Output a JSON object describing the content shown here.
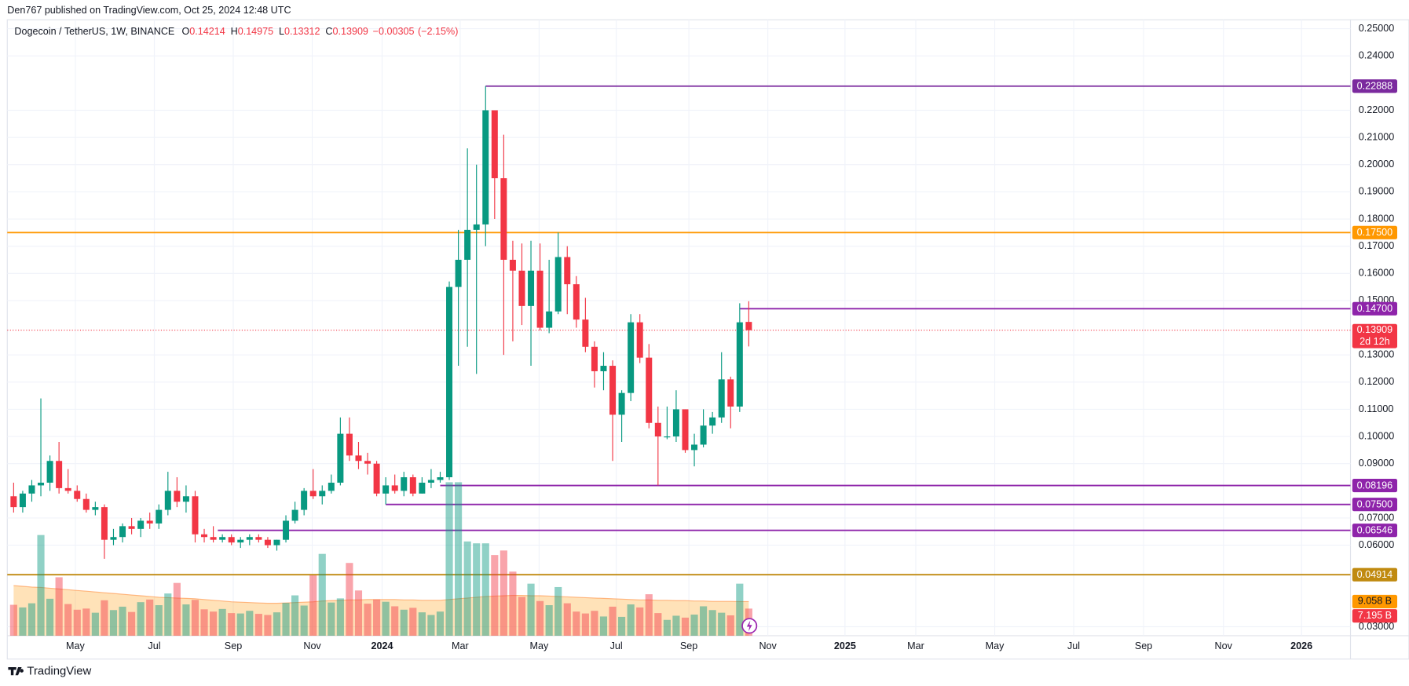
{
  "header": {
    "published": "Den767 published on TradingView.com, Oct 25, 2024 12:48 UTC"
  },
  "footer": "TradingView",
  "chart_data": {
    "type": "candlestick",
    "symbol": "Dogecoin / TetherUS, 1W, BINANCE",
    "ohlc_labels": [
      "O",
      "H",
      "L",
      "C"
    ],
    "change": {
      "value": -0.00305,
      "label": "−0.00305"
    },
    "change_pct": {
      "value": -2.15,
      "label": "(−2.15%)"
    },
    "countdown": "2d 12h",
    "up_color": "#089981",
    "down_color": "#f23645",
    "open": [
      0.078,
      0.074,
      0.079,
      0.082,
      0.083,
      0.091,
      0.081,
      0.08,
      0.077,
      0.073,
      0.074,
      0.062,
      0.063,
      0.067,
      0.066,
      0.069,
      0.068,
      0.073,
      0.08,
      0.076,
      0.078,
      0.064,
      0.063,
      0.062,
      0.063,
      0.061,
      0.062,
      0.063,
      0.062,
      0.06,
      0.062,
      0.069,
      0.073,
      0.08,
      0.078,
      0.08,
      0.083,
      0.101,
      0.093,
      0.091,
      0.09,
      0.079,
      0.082,
      0.08,
      0.085,
      0.079,
      0.083,
      0.084,
      0.085,
      0.155,
      0.165,
      0.176,
      0.178,
      0.22,
      0.195,
      0.165,
      0.161,
      0.148,
      0.161,
      0.14,
      0.146,
      0.166,
      0.156,
      0.143,
      0.133,
      0.124,
      0.126,
      0.108,
      0.116,
      0.142,
      0.129,
      0.105,
      0.1,
      0.1,
      0.11,
      0.095,
      0.097,
      0.104,
      0.107,
      0.121,
      0.111,
      0.14214
    ],
    "high": [
      0.083,
      0.08,
      0.084,
      0.114,
      0.093,
      0.098,
      0.088,
      0.082,
      0.079,
      0.076,
      0.075,
      0.066,
      0.068,
      0.07,
      0.07,
      0.072,
      0.075,
      0.087,
      0.085,
      0.082,
      0.08,
      0.066,
      0.067,
      0.064,
      0.064,
      0.063,
      0.064,
      0.064,
      0.063,
      0.062,
      0.071,
      0.076,
      0.081,
      0.088,
      0.082,
      0.086,
      0.107,
      0.107,
      0.098,
      0.094,
      0.091,
      0.085,
      0.086,
      0.087,
      0.086,
      0.085,
      0.088,
      0.087,
      0.157,
      0.176,
      0.206,
      0.2,
      0.22888,
      0.22,
      0.211,
      0.172,
      0.171,
      0.172,
      0.171,
      0.165,
      0.175,
      0.17,
      0.159,
      0.151,
      0.135,
      0.131,
      0.128,
      0.117,
      0.145,
      0.145,
      0.134,
      0.111,
      0.111,
      0.117,
      0.11,
      0.101,
      0.11,
      0.109,
      0.131,
      0.122,
      0.149,
      0.14975
    ],
    "low": [
      0.072,
      0.072,
      0.076,
      0.078,
      0.08,
      0.079,
      0.079,
      0.076,
      0.072,
      0.071,
      0.055,
      0.06,
      0.061,
      0.064,
      0.063,
      0.066,
      0.066,
      0.071,
      0.074,
      0.072,
      0.061,
      0.061,
      0.061,
      0.061,
      0.06,
      0.059,
      0.06,
      0.061,
      0.059,
      0.058,
      0.061,
      0.068,
      0.071,
      0.077,
      0.075,
      0.079,
      0.082,
      0.091,
      0.088,
      0.086,
      0.078,
      0.075,
      0.079,
      0.078,
      0.078,
      0.079,
      0.081,
      0.083,
      0.084,
      0.126,
      0.133,
      0.123,
      0.17,
      0.18,
      0.13,
      0.135,
      0.141,
      0.126,
      0.139,
      0.138,
      0.145,
      0.145,
      0.14,
      0.131,
      0.118,
      0.117,
      0.091,
      0.098,
      0.113,
      0.127,
      0.103,
      0.082,
      0.099,
      0.098,
      0.094,
      0.089,
      0.096,
      0.101,
      0.105,
      0.103,
      0.109,
      0.13312
    ],
    "close": [
      0.074,
      0.079,
      0.082,
      0.083,
      0.091,
      0.081,
      0.08,
      0.077,
      0.073,
      0.074,
      0.062,
      0.063,
      0.067,
      0.066,
      0.069,
      0.068,
      0.073,
      0.08,
      0.076,
      0.078,
      0.064,
      0.063,
      0.062,
      0.063,
      0.061,
      0.062,
      0.063,
      0.062,
      0.06,
      0.062,
      0.069,
      0.073,
      0.08,
      0.078,
      0.08,
      0.083,
      0.101,
      0.093,
      0.091,
      0.09,
      0.079,
      0.082,
      0.08,
      0.085,
      0.079,
      0.083,
      0.084,
      0.085,
      0.155,
      0.165,
      0.176,
      0.178,
      0.22,
      0.195,
      0.165,
      0.161,
      0.148,
      0.161,
      0.14,
      0.146,
      0.166,
      0.156,
      0.143,
      0.133,
      0.124,
      0.126,
      0.108,
      0.116,
      0.142,
      0.129,
      0.105,
      0.1,
      0.1,
      0.11,
      0.095,
      0.097,
      0.104,
      0.107,
      0.121,
      0.111,
      0.142,
      0.13909
    ],
    "volume": {
      "values": [
        8.2,
        7.5,
        8.6,
        26.7,
        9.8,
        15.5,
        8.4,
        6.9,
        7.2,
        6.1,
        9.4,
        6.8,
        7.7,
        6.3,
        8.9,
        9.6,
        8.1,
        11.2,
        14.0,
        8.3,
        9.5,
        7.0,
        6.4,
        7.1,
        6.0,
        5.9,
        6.6,
        5.8,
        5.5,
        6.2,
        8.7,
        10.7,
        8.0,
        16.0,
        21.7,
        8.8,
        9.9,
        19.3,
        12.0,
        8.5,
        9.6,
        9.0,
        7.8,
        6.9,
        7.4,
        6.2,
        5.5,
        6.4,
        40.7,
        40.7,
        25.0,
        24.5,
        24.5,
        21.4,
        22.6,
        17.0,
        10.3,
        13.8,
        9.2,
        8.1,
        12.9,
        8.6,
        6.4,
        5.9,
        6.6,
        5.1,
        7.7,
        5.0,
        8.3,
        7.5,
        11.0,
        6.0,
        4.2,
        5.3,
        4.8,
        5.6,
        7.8,
        6.8,
        6.1,
        5.4,
        13.8,
        7.195
      ],
      "ma": [
        13.3,
        13.1,
        12.9,
        12.8,
        12.6,
        12.4,
        12.2,
        12.0,
        11.8,
        11.6,
        11.4,
        11.2,
        11.0,
        10.8,
        10.6,
        10.4,
        10.2,
        10.1,
        10.0,
        9.9,
        9.8,
        9.6,
        9.4,
        9.2,
        9.0,
        8.9,
        8.8,
        8.7,
        8.6,
        8.6,
        8.7,
        8.8,
        8.9,
        9.0,
        9.2,
        9.3,
        9.4,
        9.5,
        9.5,
        9.6,
        9.6,
        9.6,
        9.6,
        9.5,
        9.5,
        9.4,
        9.4,
        9.4,
        9.6,
        9.8,
        10.0,
        10.2,
        10.4,
        10.5,
        10.6,
        10.7,
        10.7,
        10.6,
        10.6,
        10.5,
        10.4,
        10.3,
        10.2,
        10.1,
        10.0,
        9.9,
        9.8,
        9.7,
        9.6,
        9.5,
        9.5,
        9.4,
        9.4,
        9.3,
        9.3,
        9.2,
        9.2,
        9.1,
        9.1,
        9.1,
        9.06,
        9.058
      ],
      "label": "7.195 B",
      "ma_label": "9.058 B",
      "vlim": [
        0,
        48
      ]
    },
    "levels": [
      {
        "value": 0.22888,
        "label": "0.22888",
        "color": "#7b2a9e"
      },
      {
        "value": 0.175,
        "label": "0.17500",
        "color": "#ff9800"
      },
      {
        "value": 0.147,
        "label": "0.14700",
        "color": "#8e24aa"
      },
      {
        "value": 0.08196,
        "label": "0.08196",
        "color": "#8e24aa"
      },
      {
        "value": 0.075,
        "label": "0.07500",
        "color": "#8e24aa"
      },
      {
        "value": 0.06546,
        "label": "0.06546",
        "color": "#8e24aa"
      },
      {
        "value": 0.04914,
        "label": "0.04914",
        "color": "#c08a10"
      }
    ],
    "ylim": [
      0.0267,
      0.2533
    ],
    "yticks": [
      {
        "value": 0.25,
        "label": "0.25000"
      },
      {
        "value": 0.24,
        "label": "0.24000"
      },
      {
        "value": 0.22,
        "label": "0.22000"
      },
      {
        "value": 0.21,
        "label": "0.21000"
      },
      {
        "value": 0.2,
        "label": "0.20000"
      },
      {
        "value": 0.19,
        "label": "0.19000"
      },
      {
        "value": 0.18,
        "label": "0.18000"
      },
      {
        "value": 0.17,
        "label": "0.17000"
      },
      {
        "value": 0.16,
        "label": "0.16000"
      },
      {
        "value": 0.15,
        "label": "0.15000"
      },
      {
        "value": 0.13,
        "label": "0.13000"
      },
      {
        "value": 0.12,
        "label": "0.12000"
      },
      {
        "value": 0.11,
        "label": "0.11000"
      },
      {
        "value": 0.1,
        "label": "0.10000"
      },
      {
        "value": 0.09,
        "label": "0.09000"
      },
      {
        "value": 0.07,
        "label": "0.07000"
      },
      {
        "value": 0.06,
        "label": "0.06000"
      },
      {
        "value": 0.03,
        "label": "0.03000"
      }
    ],
    "xlim": [
      -0.7,
      147.3
    ],
    "xticks": [
      {
        "value": 6.8,
        "label": "May"
      },
      {
        "value": 15.5,
        "label": "Jul"
      },
      {
        "value": 24.2,
        "label": "Sep"
      },
      {
        "value": 32.9,
        "label": "Nov"
      },
      {
        "value": 40.6,
        "label": "2024"
      },
      {
        "value": 49.2,
        "label": "Mar"
      },
      {
        "value": 57.9,
        "label": "May"
      },
      {
        "value": 66.4,
        "label": "Jul"
      },
      {
        "value": 74.4,
        "label": "Sep"
      },
      {
        "value": 83.1,
        "label": "Nov"
      },
      {
        "value": 91.6,
        "label": "2025"
      },
      {
        "value": 99.4,
        "label": "Mar"
      },
      {
        "value": 108.1,
        "label": "May"
      },
      {
        "value": 116.8,
        "label": "Jul"
      },
      {
        "value": 124.5,
        "label": "Sep"
      },
      {
        "value": 133.3,
        "label": "Nov"
      },
      {
        "value": 141.9,
        "label": "2026"
      }
    ],
    "grid": true
  }
}
